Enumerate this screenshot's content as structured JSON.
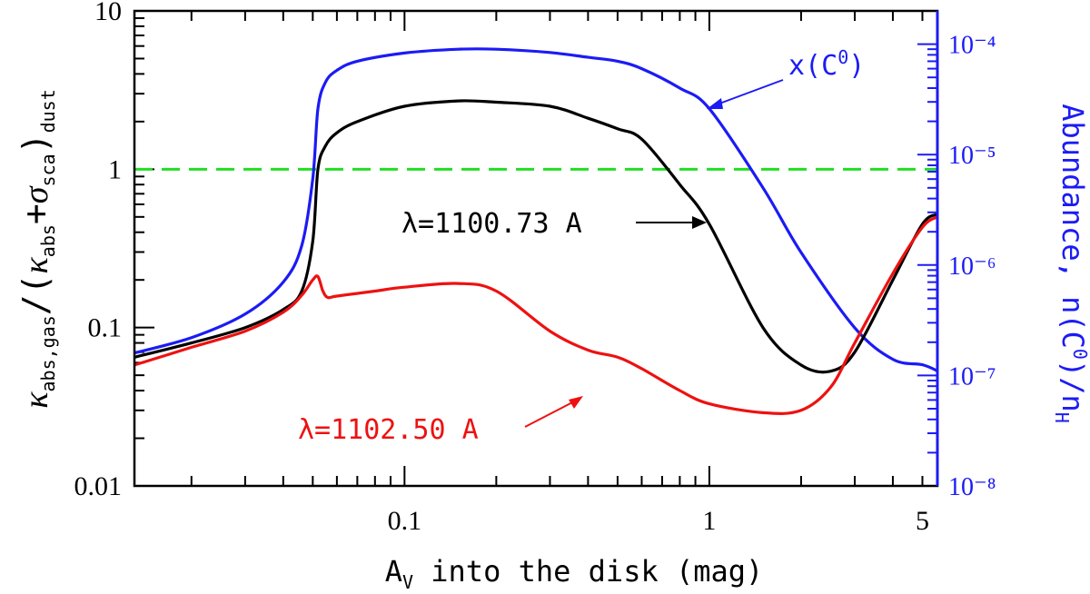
{
  "chart_data": {
    "type": "line",
    "xlabel": "A_V into the disk (mag)",
    "xscale": "log",
    "xlim": [
      0.013,
      5.6
    ],
    "x_ticks": [
      {
        "value": 0.1,
        "label": "0.1"
      },
      {
        "value": 1,
        "label": "1"
      },
      {
        "value": 5,
        "label": "5"
      }
    ],
    "ylabel_left": "κ_abs,gas/(κ_abs+σ_sca)_dust",
    "ylim_left": [
      0.01,
      10
    ],
    "yscale_left": "log",
    "y_ticks_left": [
      {
        "value": 0.01,
        "label": "0.01"
      },
      {
        "value": 0.1,
        "label": "0.1"
      },
      {
        "value": 1,
        "label": "1"
      },
      {
        "value": 10,
        "label": "10"
      }
    ],
    "ylabel_right": "Abundance, n(C⁰)/n_H",
    "ylim_right": [
      1e-08,
      0.0002
    ],
    "yscale_right": "log",
    "y_ticks_right": [
      {
        "value": 1e-08,
        "label": "10⁻⁸"
      },
      {
        "value": 1e-07,
        "label": "10⁻⁷"
      },
      {
        "value": 1e-06,
        "label": "10⁻⁶"
      },
      {
        "value": 1e-05,
        "label": "10⁻⁵"
      },
      {
        "value": 0.0001,
        "label": "10⁻⁴"
      }
    ],
    "reference_line": {
      "y": 1,
      "color": "#22dd22",
      "style": "dashed"
    },
    "series": [
      {
        "name": "x(C⁰)",
        "color": "#1b1bf5",
        "axis": "right",
        "x": [
          0.013,
          0.02,
          0.03,
          0.04,
          0.046,
          0.05,
          0.052,
          0.055,
          0.06,
          0.07,
          0.1,
          0.15,
          0.2,
          0.3,
          0.4,
          0.5,
          0.6,
          0.8,
          1.0,
          1.5,
          2.0,
          3.0,
          4.0,
          5.0,
          5.6
        ],
        "y": [
          1.6e-07,
          2.2e-07,
          3.6e-07,
          7e-07,
          1.5e-06,
          6e-06,
          2.6e-05,
          4.5e-05,
          5.8e-05,
          7e-05,
          8.3e-05,
          9e-05,
          9e-05,
          8.4e-05,
          7.6e-05,
          7e-05,
          6e-05,
          4e-05,
          2.6e-05,
          5e-06,
          1.3e-06,
          2.7e-07,
          1.4e-07,
          1.25e-07,
          1.1e-07
        ]
      },
      {
        "name": "λ=1100.73 A",
        "color": "#000000",
        "axis": "left",
        "x": [
          0.013,
          0.02,
          0.03,
          0.04,
          0.046,
          0.05,
          0.052,
          0.055,
          0.06,
          0.07,
          0.1,
          0.15,
          0.2,
          0.3,
          0.4,
          0.5,
          0.6,
          0.8,
          1.0,
          1.5,
          2.0,
          2.5,
          3.0,
          4.0,
          5.0,
          5.6
        ],
        "y": [
          0.065,
          0.08,
          0.1,
          0.13,
          0.17,
          0.35,
          1.0,
          1.4,
          1.7,
          2.0,
          2.5,
          2.7,
          2.65,
          2.5,
          2.1,
          1.8,
          1.55,
          0.8,
          0.45,
          0.1,
          0.058,
          0.053,
          0.07,
          0.2,
          0.45,
          0.52
        ]
      },
      {
        "name": "λ=1102.50 A",
        "color": "#ee1111",
        "axis": "left",
        "x": [
          0.013,
          0.02,
          0.03,
          0.04,
          0.046,
          0.05,
          0.052,
          0.054,
          0.056,
          0.06,
          0.08,
          0.1,
          0.15,
          0.2,
          0.3,
          0.4,
          0.5,
          0.6,
          0.8,
          1.0,
          1.5,
          2.0,
          2.5,
          3.0,
          4.0,
          5.0,
          5.6
        ],
        "y": [
          0.058,
          0.075,
          0.095,
          0.125,
          0.16,
          0.2,
          0.21,
          0.17,
          0.155,
          0.158,
          0.17,
          0.18,
          0.19,
          0.17,
          0.095,
          0.072,
          0.065,
          0.055,
          0.04,
          0.033,
          0.029,
          0.03,
          0.042,
          0.08,
          0.22,
          0.43,
          0.5
        ]
      }
    ],
    "annotations": {
      "blue_label": "x(C⁰)",
      "black_label": "λ=1100.73 A",
      "red_label": "λ=1102.50 A"
    }
  }
}
